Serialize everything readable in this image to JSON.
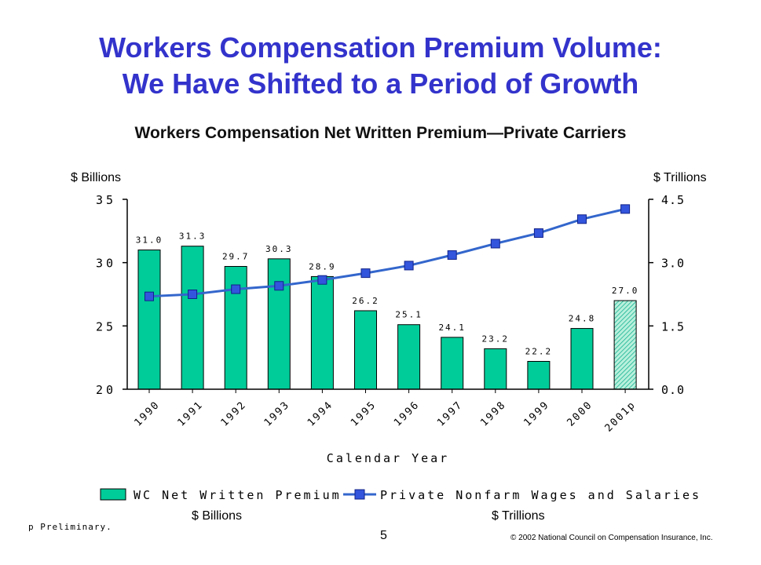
{
  "slide": {
    "title_line1": "Workers Compensation Premium Volume:",
    "title_line2": "We Have Shifted to a Period of Growth",
    "subtitle": "Workers Compensation Net Written Premium—Private Carriers",
    "left_unit_top": "$ Billions",
    "right_unit_top": "$ Trillions",
    "left_unit_bottom": "$ Billions",
    "right_unit_bottom": "$ Trillions",
    "footnote": "p Preliminary.",
    "page_number": "5",
    "copyright": "© 2002 National Council on Compensation Insurance, Inc."
  },
  "chart_data": {
    "type": "bar",
    "categories": [
      "1990",
      "1991",
      "1992",
      "1993",
      "1994",
      "1995",
      "1996",
      "1997",
      "1998",
      "1999",
      "2000",
      "2001p"
    ],
    "xlabel": "Calendar Year",
    "y_left": {
      "ticks": [
        "35",
        "30",
        "25",
        "20"
      ],
      "ylim": [
        20,
        35
      ]
    },
    "y_right": {
      "ticks": [
        "4.5",
        "3.0",
        "1.5",
        "0.0"
      ],
      "ylim": [
        0,
        4.5
      ]
    },
    "series": [
      {
        "name": "WC Net Written Premium",
        "kind": "bar",
        "axis": "left",
        "values": [
          31.0,
          31.3,
          29.7,
          30.3,
          28.9,
          26.2,
          25.1,
          24.1,
          23.2,
          22.2,
          24.8,
          27.0
        ],
        "labels": [
          "31.0",
          "31.3",
          "29.7",
          "30.3",
          "28.9",
          "26.2",
          "25.1",
          "24.1",
          "23.2",
          "22.2",
          "24.8",
          "27.0"
        ],
        "color": "#00cc99",
        "preliminary_index": 11
      },
      {
        "name": "Private Nonfarm Wages and Salaries",
        "kind": "line",
        "axis": "right",
        "values": [
          2.2,
          2.25,
          2.37,
          2.45,
          2.59,
          2.75,
          2.93,
          3.18,
          3.45,
          3.7,
          4.03,
          4.27
        ],
        "color": "#3366cc",
        "marker_color": "#3355dd"
      }
    ],
    "legend_position": "bottom",
    "grid": false
  }
}
